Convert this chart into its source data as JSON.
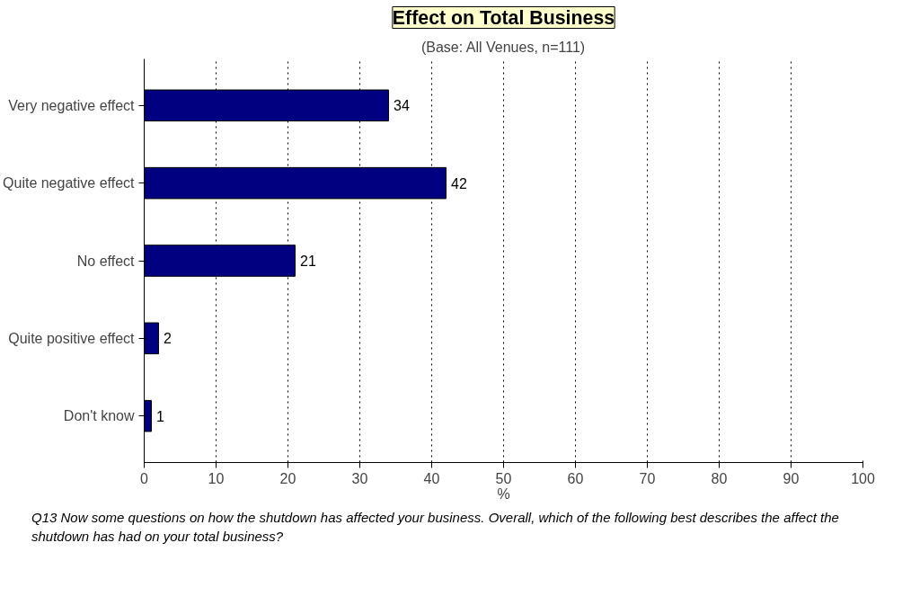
{
  "chart_data": {
    "type": "bar",
    "orientation": "horizontal",
    "title": "Effect on Total Business",
    "subtitle": "(Base: All Venues, n=111)",
    "categories": [
      "Very negative effect",
      "Quite negative effect",
      "No effect",
      "Quite positive effect",
      "Don't know"
    ],
    "values": [
      34,
      42,
      21,
      2,
      1
    ],
    "color": "#000080",
    "data_labels": true,
    "xlim": [
      0,
      100
    ],
    "xticks": [
      0,
      10,
      20,
      30,
      40,
      50,
      60,
      70,
      80,
      90,
      100
    ],
    "xlabel": "%",
    "grid": "x",
    "annotations": [
      "Q13 Now some questions on how the shutdown has affected your business. Overall, which of the following best describes the affect the shutdown has had on your total business?"
    ]
  }
}
